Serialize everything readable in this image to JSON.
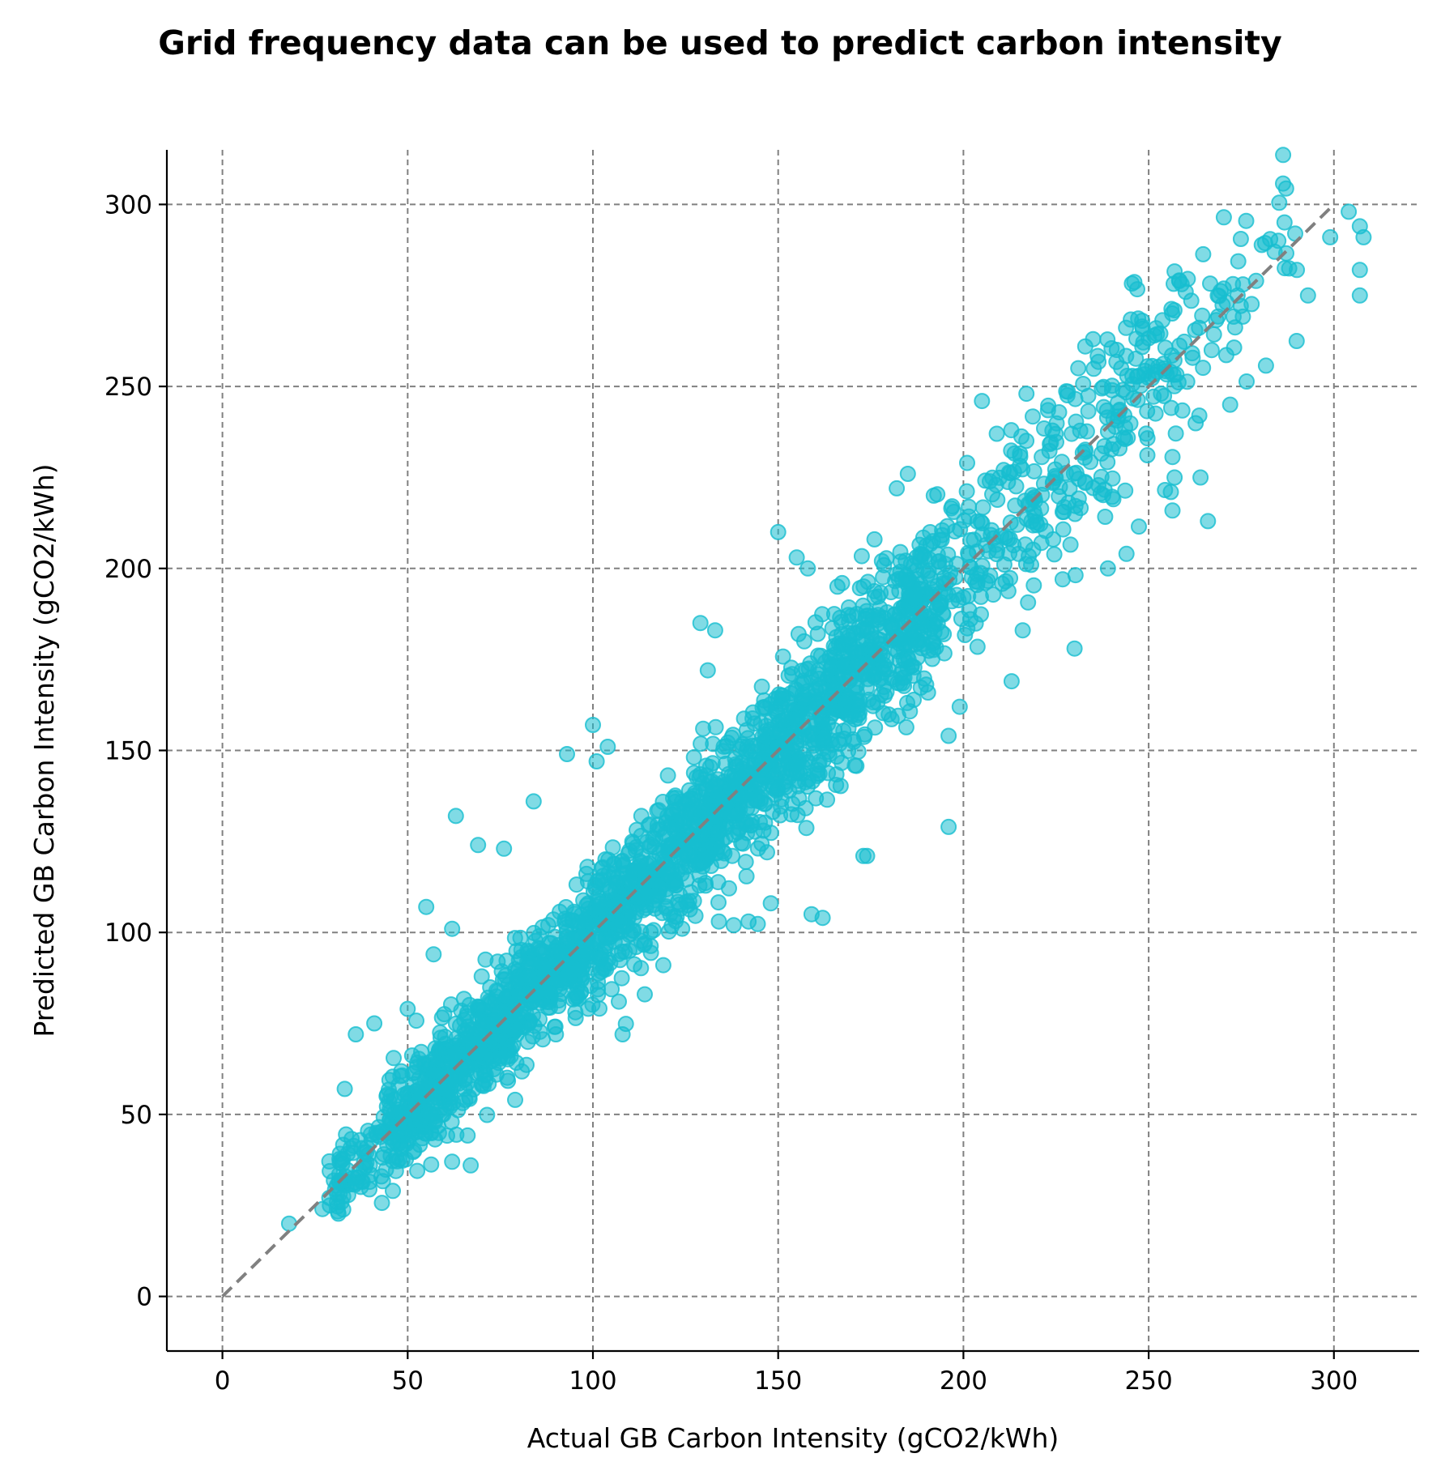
{
  "chart_data": {
    "type": "scatter",
    "title": "Grid frequency data can be used to predict carbon intensity",
    "xlabel": "Actual GB Carbon Intensity (gCO2/kWh)",
    "ylabel": "Predicted GB Carbon Intensity (gCO2/kWh)",
    "xlim": [
      -15,
      323
    ],
    "ylim": [
      -15,
      315
    ],
    "xticks": [
      0,
      50,
      100,
      150,
      200,
      250,
      300
    ],
    "yticks": [
      0,
      50,
      100,
      150,
      200,
      250,
      300
    ],
    "grid": true,
    "marker_color": "#17becf",
    "marker_alpha": 0.55,
    "reference_line": {
      "from": [
        0,
        0
      ],
      "to": [
        300,
        300
      ],
      "color": "#808080",
      "style": "dashed"
    },
    "outliers": [
      [
        18,
        20
      ],
      [
        27,
        24
      ],
      [
        29,
        25
      ],
      [
        33,
        57
      ],
      [
        36,
        72
      ],
      [
        41,
        75
      ],
      [
        46,
        29
      ],
      [
        50,
        79
      ],
      [
        55,
        107
      ],
      [
        57,
        94
      ],
      [
        62,
        37
      ],
      [
        62,
        101
      ],
      [
        63,
        132
      ],
      [
        67,
        36
      ],
      [
        69,
        124
      ],
      [
        76,
        123
      ],
      [
        79,
        54
      ],
      [
        84,
        136
      ],
      [
        90,
        72
      ],
      [
        93,
        149
      ],
      [
        100,
        157
      ],
      [
        101,
        147
      ],
      [
        104,
        151
      ],
      [
        107,
        81
      ],
      [
        108,
        72
      ],
      [
        114,
        83
      ],
      [
        119,
        91
      ],
      [
        129,
        185
      ],
      [
        131,
        172
      ],
      [
        133,
        183
      ],
      [
        134,
        103
      ],
      [
        138,
        102
      ],
      [
        142,
        103
      ],
      [
        148,
        108
      ],
      [
        150,
        210
      ],
      [
        155,
        203
      ],
      [
        158,
        200
      ],
      [
        159,
        105
      ],
      [
        162,
        104
      ],
      [
        166,
        195
      ],
      [
        173,
        121
      ],
      [
        174,
        121
      ],
      [
        176,
        208
      ],
      [
        178,
        202
      ],
      [
        182,
        222
      ],
      [
        185,
        226
      ],
      [
        192,
        220
      ],
      [
        196,
        129
      ],
      [
        196,
        154
      ],
      [
        199,
        162
      ],
      [
        201,
        229
      ],
      [
        205,
        246
      ],
      [
        209,
        237
      ],
      [
        213,
        169
      ],
      [
        216,
        183
      ],
      [
        217,
        248
      ],
      [
        230,
        178
      ],
      [
        231,
        255
      ],
      [
        235,
        263
      ],
      [
        239,
        200
      ],
      [
        244,
        204
      ],
      [
        252,
        266
      ],
      [
        256,
        221
      ],
      [
        257,
        225
      ],
      [
        260,
        276
      ],
      [
        264,
        225
      ],
      [
        266,
        213
      ],
      [
        267,
        260
      ],
      [
        272,
        245
      ],
      [
        274,
        275
      ],
      [
        279,
        279
      ],
      [
        284,
        287
      ],
      [
        285,
        290
      ],
      [
        290,
        282
      ],
      [
        293,
        275
      ],
      [
        299,
        291
      ],
      [
        304,
        298
      ],
      [
        307,
        282
      ],
      [
        307,
        275
      ],
      [
        307,
        294
      ],
      [
        308,
        291
      ]
    ]
  }
}
